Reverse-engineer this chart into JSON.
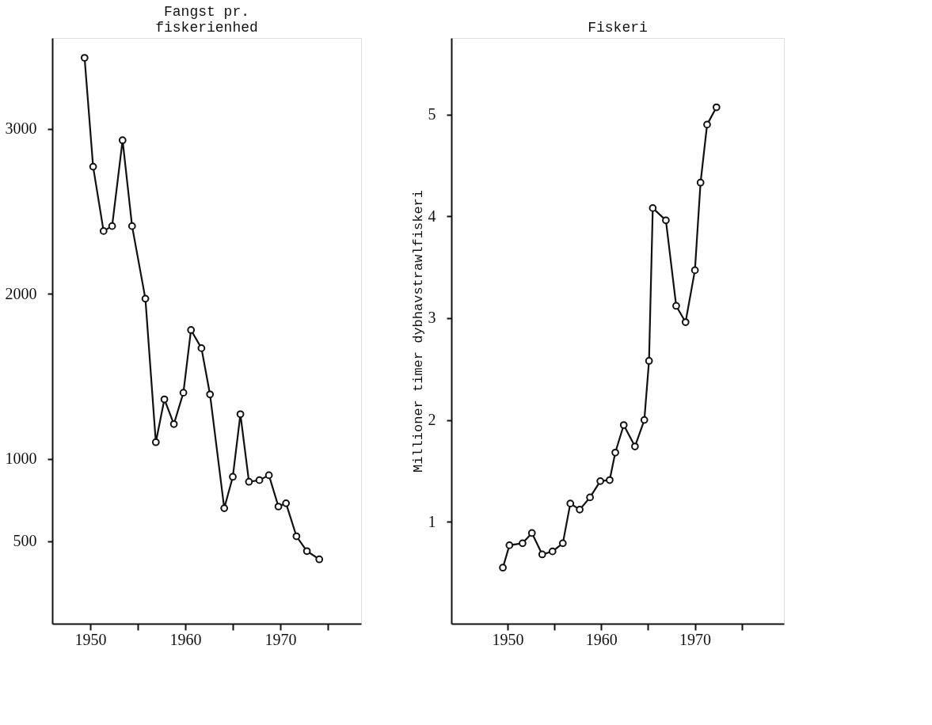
{
  "chart_data": [
    {
      "type": "line",
      "title": [
        "Fangst pr.",
        "fiskerienhed"
      ],
      "marker": "circle",
      "line_style": "solid",
      "grid": false,
      "xlim": [
        1946,
        1978.5
      ],
      "xticks": [
        1950,
        {
          "value": 1955,
          "label": null
        },
        1960,
        {
          "value": 1965,
          "label": null
        },
        1970,
        {
          "value": 1975,
          "label": null
        }
      ],
      "ylim": [
        0,
        3550
      ],
      "yticks": [
        500,
        1000,
        2000,
        3000
      ],
      "series": [
        {
          "color": "#111111",
          "x": [
            1949.4,
            1950.3,
            1951.4,
            1952.3,
            1953.4,
            1954.4,
            1955.8,
            1956.9,
            1957.8,
            1958.8,
            1959.8,
            1960.6,
            1961.7,
            1962.6,
            1964.1,
            1965.0,
            1965.8,
            1966.7,
            1967.8,
            1968.8,
            1969.8,
            1970.6,
            1971.7,
            1972.8,
            1974.1
          ],
          "values": [
            3430,
            2770,
            2380,
            2410,
            2930,
            2410,
            1970,
            1100,
            1360,
            1210,
            1400,
            1780,
            1670,
            1390,
            700,
            890,
            1270,
            860,
            870,
            900,
            710,
            730,
            530,
            440,
            390
          ]
        }
      ]
    },
    {
      "type": "line",
      "title": "Fiskeri",
      "ylabel": "Millioner timer dybhavstrawlfiskeri",
      "marker": "circle",
      "line_style": "solid",
      "grid": false,
      "xlim": [
        1944,
        1979.5
      ],
      "xticks": [
        1950,
        {
          "value": 1955,
          "label": null
        },
        1960,
        {
          "value": 1965,
          "label": null
        },
        1970,
        {
          "value": 1975,
          "label": null
        }
      ],
      "ylim": [
        0,
        5.75
      ],
      "yticks": [
        1,
        2,
        3,
        4,
        5
      ],
      "series": [
        {
          "color": "#111111",
          "x": [
            1949.5,
            1950.2,
            1951.6,
            1952.6,
            1953.7,
            1954.8,
            1955.9,
            1956.7,
            1957.7,
            1958.8,
            1959.9,
            1960.9,
            1961.5,
            1962.4,
            1963.6,
            1964.6,
            1965.1,
            1965.5,
            1966.9,
            1968.0,
            1969.0,
            1970.0,
            1970.6,
            1971.3,
            1972.3
          ],
          "values": [
            0.55,
            0.77,
            0.79,
            0.89,
            0.68,
            0.71,
            0.79,
            1.18,
            1.12,
            1.24,
            1.4,
            1.41,
            1.68,
            1.95,
            1.74,
            2.0,
            2.58,
            4.08,
            3.96,
            3.12,
            2.96,
            3.47,
            4.33,
            4.9,
            5.07
          ]
        }
      ]
    }
  ]
}
